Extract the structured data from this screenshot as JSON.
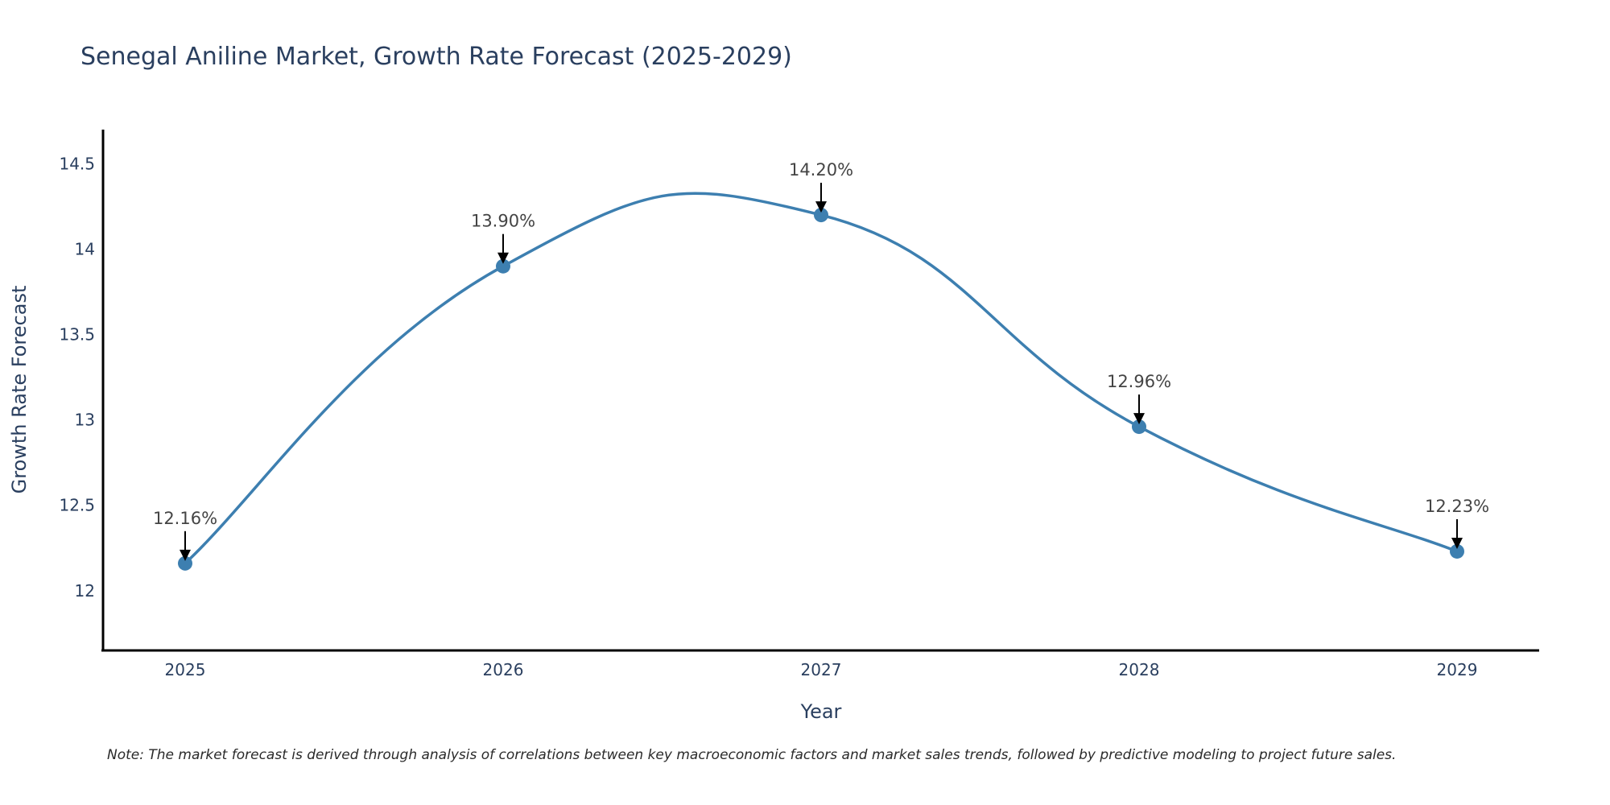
{
  "chart_data": {
    "type": "line",
    "title": "Senegal Aniline Market, Growth Rate Forecast (2025-2029)",
    "xlabel": "Year",
    "ylabel": "Growth Rate Forecast",
    "categories": [
      "2025",
      "2026",
      "2027",
      "2028",
      "2029"
    ],
    "series": [
      {
        "name": "Growth Rate Forecast",
        "values": [
          12.16,
          13.9,
          14.2,
          12.96,
          12.23
        ],
        "labels": [
          "12.16%",
          "13.90%",
          "14.20%",
          "12.96%",
          "12.23%"
        ]
      }
    ],
    "ylim": [
      11.65,
      14.7
    ],
    "yticks": [
      12,
      12.5,
      13,
      13.5,
      14,
      14.5
    ],
    "ytick_labels": [
      "12",
      "12.5",
      "13",
      "13.5",
      "14",
      "14.5"
    ],
    "line_shape": "spline",
    "grid": false,
    "note": "Note: The market forecast is derived through analysis of correlations between key macroeconomic factors and market sales trends, followed by predictive modeling to project future sales."
  },
  "colors": {
    "line": "#3d7fb0",
    "marker": "#3d7fb0",
    "axis": "#000000",
    "text": "#2a3f5f",
    "arrow": "#000000"
  }
}
